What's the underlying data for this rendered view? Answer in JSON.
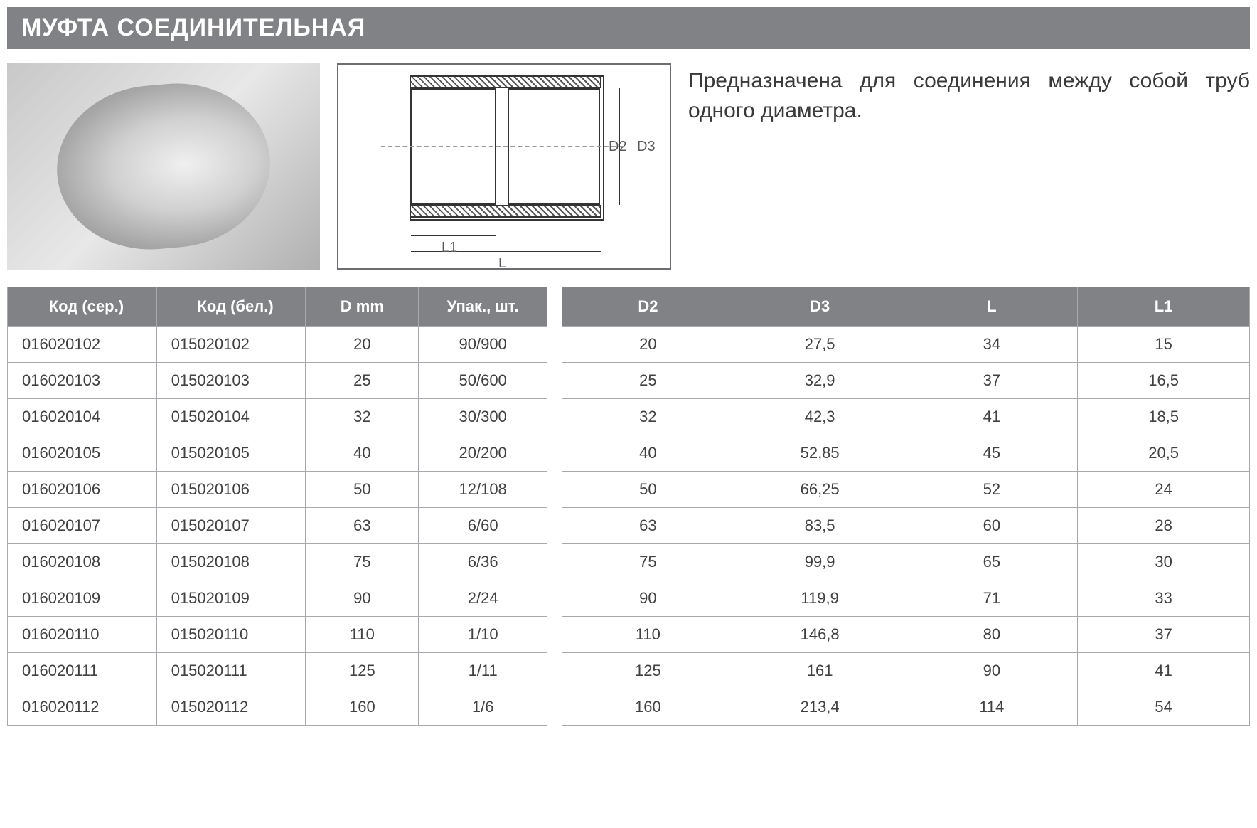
{
  "title": "МУФТА СОЕДИНИТЕЛЬНАЯ",
  "description": "Предназначена для соединения между собой труб одного диаметра.",
  "drawing_labels": {
    "d2": "D2",
    "d3": "D3",
    "l": "L",
    "l1": "L1"
  },
  "colors": {
    "header_bg": "#808285",
    "header_text": "#ffffff",
    "border": "#a7a9ac",
    "cell_text": "#414042",
    "body_text": "#3a3a3a",
    "page_bg": "#ffffff"
  },
  "typography": {
    "title_fontsize": 34,
    "desc_fontsize": 30,
    "table_fontsize": 22,
    "dim_fontsize": 20,
    "font_family": "Arial"
  },
  "table_left": {
    "columns": [
      "Код (сер.)",
      "Код (бел.)",
      "D mm",
      "Упак., шт."
    ],
    "rows": [
      [
        "016020102",
        "015020102",
        "20",
        "90/900"
      ],
      [
        "016020103",
        "015020103",
        "25",
        "50/600"
      ],
      [
        "016020104",
        "015020104",
        "32",
        "30/300"
      ],
      [
        "016020105",
        "015020105",
        "40",
        "20/200"
      ],
      [
        "016020106",
        "015020106",
        "50",
        "12/108"
      ],
      [
        "016020107",
        "015020107",
        "63",
        "6/60"
      ],
      [
        "016020108",
        "015020108",
        "75",
        "6/36"
      ],
      [
        "016020109",
        "015020109",
        "90",
        "2/24"
      ],
      [
        "016020110",
        "015020110",
        "110",
        "1/10"
      ],
      [
        "016020111",
        "015020111",
        "125",
        "1/11"
      ],
      [
        "016020112",
        "015020112",
        "160",
        "1/6"
      ]
    ]
  },
  "table_right": {
    "columns": [
      "D2",
      "D3",
      "L",
      "L1"
    ],
    "rows": [
      [
        "20",
        "27,5",
        "34",
        "15"
      ],
      [
        "25",
        "32,9",
        "37",
        "16,5"
      ],
      [
        "32",
        "42,3",
        "41",
        "18,5"
      ],
      [
        "40",
        "52,85",
        "45",
        "20,5"
      ],
      [
        "50",
        "66,25",
        "52",
        "24"
      ],
      [
        "63",
        "83,5",
        "60",
        "28"
      ],
      [
        "75",
        "99,9",
        "65",
        "30"
      ],
      [
        "90",
        "119,9",
        "71",
        "33"
      ],
      [
        "110",
        "146,8",
        "80",
        "37"
      ],
      [
        "125",
        "161",
        "90",
        "41"
      ],
      [
        "160",
        "213,4",
        "114",
        "54"
      ]
    ]
  }
}
